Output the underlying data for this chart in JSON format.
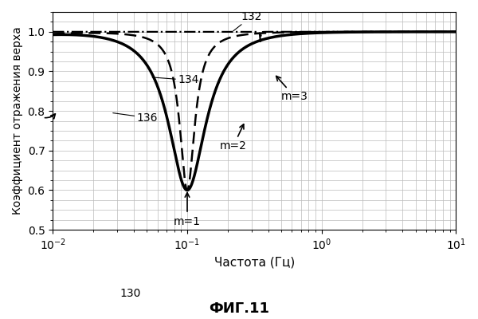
{
  "title": "ФИГ.11",
  "xlabel": "Частота (Гц)",
  "ylabel": "Коэффициент отражения верха",
  "ylim": [
    0.5,
    1.05
  ],
  "yticks": [
    0.5,
    0.6,
    0.7,
    0.8,
    0.9,
    1.0
  ],
  "label_132": "132",
  "label_134": "134",
  "label_136": "136",
  "label_130": "130",
  "annotation_m1": "m=1",
  "annotation_m2": "m=2",
  "annotation_m3": "m=3",
  "bg_color": "#ffffff",
  "line_color": "#000000",
  "grid_color": "#bbbbbb"
}
